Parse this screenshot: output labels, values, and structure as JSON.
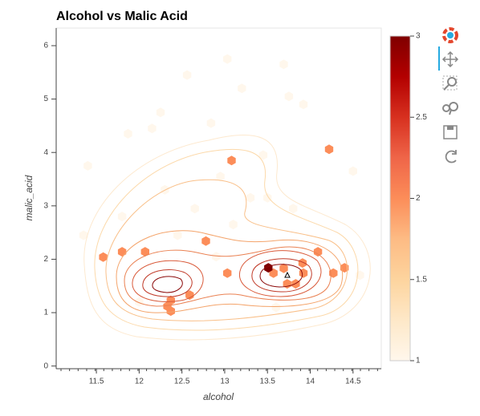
{
  "chart_data": {
    "type": "hexbin",
    "title": "Alcohol vs Malic Acid",
    "x_label": "alcohol",
    "y_label": "malic_acid",
    "xlim": [
      11.03,
      14.83
    ],
    "ylim": [
      -0.05,
      6.33
    ],
    "xticks": [
      11.5,
      12,
      12.5,
      13,
      13.5,
      14,
      14.5
    ],
    "yticks": [
      0,
      1,
      2,
      3,
      4,
      5,
      6
    ],
    "x": [
      13.08,
      14.22,
      12.78,
      11.58,
      11.8,
      12.07,
      13.03,
      13.69,
      13.91,
      14.09,
      14.4,
      14.27,
      13.92,
      13.57,
      13.73,
      13.83,
      12.59,
      12.37,
      12.33,
      12.37,
      13.51,
      13.03,
      13.69,
      12.56,
      13.2,
      13.75,
      13.92,
      12.25,
      12.84,
      12.15,
      11.87,
      11.4,
      13.45,
      14.5,
      12.95,
      12.3,
      13.3,
      13.5,
      13.8,
      11.8,
      12.65,
      13.1,
      12.45,
      11.35,
      12.9,
      14.58,
      12.0,
      13.6
    ],
    "y": [
      3.85,
      4.06,
      2.34,
      2.04,
      2.14,
      2.14,
      1.74,
      1.83,
      1.93,
      2.14,
      1.84,
      1.74,
      1.74,
      1.74,
      1.54,
      1.54,
      1.33,
      1.23,
      1.12,
      1.03,
      1.84,
      5.75,
      5.65,
      5.45,
      5.2,
      5.05,
      4.9,
      4.75,
      4.55,
      4.45,
      4.35,
      3.75,
      3.95,
      3.65,
      3.55,
      3.3,
      3.15,
      3.15,
      2.95,
      2.8,
      2.95,
      2.65,
      2.45,
      2.45,
      2.05,
      1.7,
      1.2,
      1.1
    ],
    "counts": [
      2,
      2,
      2,
      2,
      2,
      2,
      2,
      2,
      2,
      2,
      2,
      2,
      2,
      2,
      2,
      2,
      2,
      2,
      2,
      2,
      3,
      1,
      1,
      1,
      1,
      1,
      1,
      1,
      1,
      1,
      1,
      1,
      1,
      1,
      1,
      1,
      1,
      1,
      1,
      1,
      1,
      1,
      1,
      1,
      1,
      1,
      1,
      1
    ],
    "palette": [
      "#fff7ec",
      "#fee8c8",
      "#fdd49e",
      "#fdbb84",
      "#fc8d59",
      "#ef6548",
      "#d7301f",
      "#b30000",
      "#7f0000"
    ],
    "colorbar_lim": [
      1,
      3
    ],
    "colorbar_ticks": [
      1,
      1.5,
      2,
      2.5,
      3
    ]
  }
}
